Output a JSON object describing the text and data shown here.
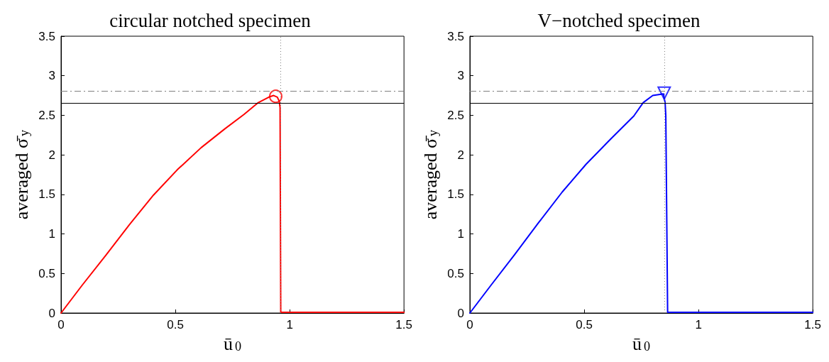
{
  "chart_data": [
    {
      "type": "line",
      "title": "circular notched specimen",
      "xlabel": "ū$_{0}$",
      "ylabel": "averaged σ̄$_{y}$",
      "xlim": [
        0,
        1.5
      ],
      "ylim": [
        0,
        3.5
      ],
      "xticks": [
        0,
        0.5,
        1,
        1.5
      ],
      "yticks": [
        0,
        0.5,
        1,
        1.5,
        2,
        2.5,
        3,
        3.5
      ],
      "grid": false,
      "series": [
        {
          "color": "#ff0000",
          "marker": "none",
          "x": [
            0,
            0.092,
            0.196,
            0.3,
            0.404,
            0.508,
            0.6125,
            0.717,
            0.8,
            0.8625,
            0.909,
            0.93,
            0.946,
            0.954,
            0.958,
            0.961,
            1.5
          ],
          "values": [
            0,
            0.35,
            0.73,
            1.12,
            1.49,
            1.81,
            2.09,
            2.33,
            2.51,
            2.66,
            2.73,
            2.75,
            2.73,
            2.68,
            2.6,
            0.01,
            0.01
          ]
        },
        {
          "type": "scatter",
          "color": "#ff0000",
          "marker": "circle",
          "x": [
            0.939
          ],
          "values": [
            2.74
          ]
        }
      ],
      "ref_lines": [
        {
          "axis": "y",
          "value": 2.655,
          "color": "#000000",
          "line_style": "solid"
        },
        {
          "axis": "y",
          "value": 2.81,
          "color": "#808080",
          "line_style": "dashed"
        },
        {
          "axis": "x",
          "value": 0.958,
          "color": "#808080",
          "line_style": "dotted"
        }
      ]
    },
    {
      "type": "line",
      "title": "V−notched specimen",
      "xlabel": "ū$_{0}$",
      "ylabel": "averaged σ̄$_{y}$",
      "xlim": [
        0,
        1.5
      ],
      "ylim": [
        0,
        3.5
      ],
      "xticks": [
        0,
        0.5,
        1,
        1.5
      ],
      "yticks": [
        0,
        0.5,
        1,
        1.5,
        2,
        2.5,
        3,
        3.5
      ],
      "grid": false,
      "series": [
        {
          "color": "#0000ff",
          "marker": "none",
          "x": [
            0,
            0.092,
            0.196,
            0.3,
            0.404,
            0.508,
            0.6125,
            0.717,
            0.758,
            0.8,
            0.847,
            0.854,
            0.857,
            0.865,
            1.5
          ],
          "values": [
            0,
            0.35,
            0.74,
            1.14,
            1.53,
            1.88,
            2.19,
            2.49,
            2.66,
            2.75,
            2.77,
            2.66,
            2.5,
            0.01,
            0.01
          ]
        },
        {
          "type": "scatter",
          "color": "#0000ff",
          "marker": "triangle",
          "x": [
            0.85
          ],
          "values": [
            2.78
          ]
        }
      ],
      "ref_lines": [
        {
          "axis": "y",
          "value": 2.655,
          "color": "#000000",
          "line_style": "solid"
        },
        {
          "axis": "y",
          "value": 2.81,
          "color": "#808080",
          "line_style": "dashed"
        },
        {
          "axis": "x",
          "value": 0.854,
          "color": "#808080",
          "line_style": "dotted"
        }
      ]
    }
  ]
}
